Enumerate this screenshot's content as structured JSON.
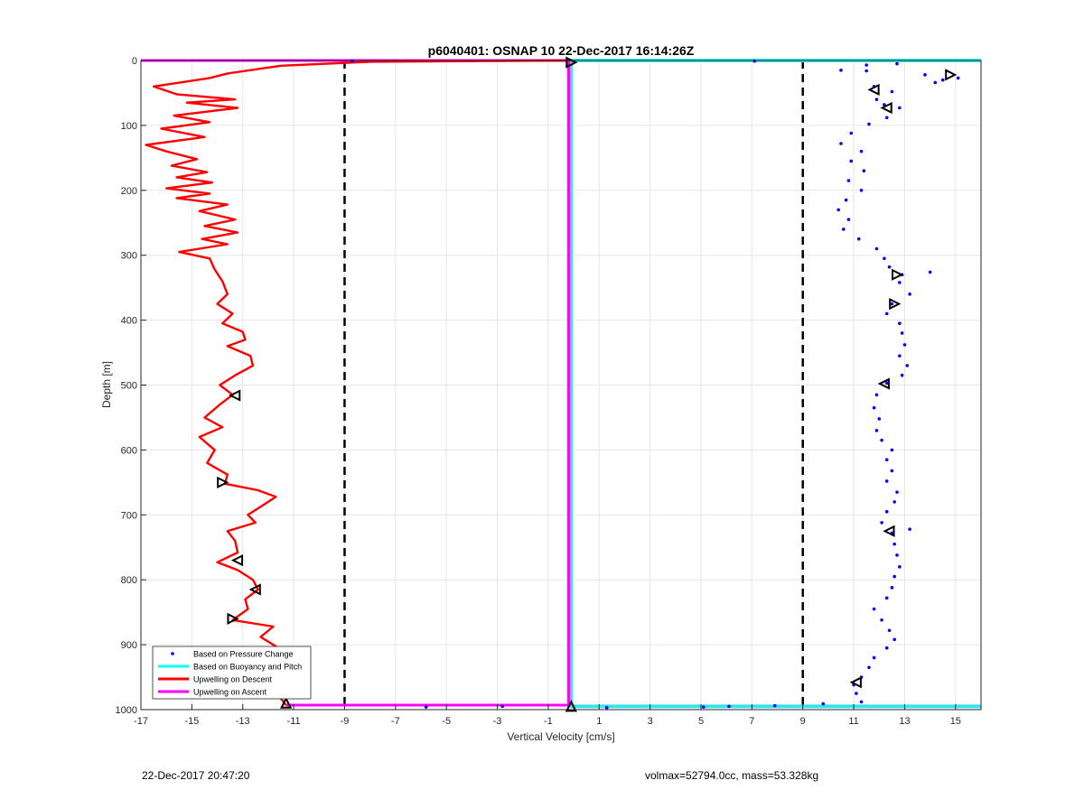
{
  "chart_data": {
    "type": "scatter",
    "title": "p6040401: OSNAP 10 22-Dec-2017 16:14:26Z",
    "xlabel": "Vertical Velocity [cm/s]",
    "ylabel": "Depth [m]",
    "xlim": [
      -17,
      16
    ],
    "ylim": [
      0,
      1000
    ],
    "y_reversed": true,
    "grid": true,
    "x_ticks": [
      -17,
      -15,
      -13,
      -11,
      -9,
      -7,
      -5,
      -3,
      -1,
      1,
      3,
      5,
      7,
      9,
      11,
      13,
      15
    ],
    "y_ticks": [
      0,
      100,
      200,
      300,
      400,
      500,
      600,
      700,
      800,
      900,
      1000
    ],
    "reference_lines": [
      {
        "name": "threshold-left",
        "x": -9,
        "style": "dashed",
        "color": "#000000"
      },
      {
        "name": "threshold-right",
        "x": 9,
        "style": "dashed",
        "color": "#000000"
      }
    ],
    "legend": {
      "location": "bottom-left",
      "entries": [
        {
          "label": "Based on Pressure Change",
          "color": "#0000ff",
          "marker": "dot"
        },
        {
          "label": "Based on Buoyancy and Pitch",
          "color": "#00ffff",
          "marker": "line"
        },
        {
          "label": "Upwelling on Descent",
          "color": "#ff0000",
          "marker": "line"
        },
        {
          "label": "Upwelling on Ascent",
          "color": "#ff00ff",
          "marker": "line"
        }
      ]
    },
    "series": [
      {
        "name": "Based on Buoyancy and Pitch",
        "type": "line",
        "color": "#33e5ea",
        "points": [
          [
            16,
            0
          ],
          [
            -0.1,
            0
          ],
          [
            -0.1,
            995
          ],
          [
            16,
            995
          ]
        ]
      },
      {
        "name": "Upwelling on Ascent",
        "type": "line",
        "color": "#ff00ff",
        "points": [
          [
            -17,
            0
          ],
          [
            -0.2,
            0
          ],
          [
            -0.2,
            993
          ],
          [
            -11.3,
            993
          ]
        ]
      },
      {
        "name": "Upwelling on Descent",
        "type": "line",
        "color": "#ff0000",
        "points": [
          [
            -0.1,
            0
          ],
          [
            -8,
            2
          ],
          [
            -11.5,
            8
          ],
          [
            -13.6,
            20
          ],
          [
            -14.3,
            27
          ],
          [
            -16.5,
            40
          ],
          [
            -15.6,
            52
          ],
          [
            -13.3,
            60
          ],
          [
            -15.2,
            65
          ],
          [
            -13.2,
            73
          ],
          [
            -15.7,
            85
          ],
          [
            -14.3,
            95
          ],
          [
            -16.2,
            105
          ],
          [
            -14.5,
            118
          ],
          [
            -16.8,
            130
          ],
          [
            -16,
            140
          ],
          [
            -14.8,
            152
          ],
          [
            -15.8,
            162
          ],
          [
            -14.4,
            172
          ],
          [
            -15.6,
            180
          ],
          [
            -14.2,
            188
          ],
          [
            -16,
            197
          ],
          [
            -14.3,
            205
          ],
          [
            -15.6,
            212
          ],
          [
            -13.6,
            222
          ],
          [
            -14.7,
            232
          ],
          [
            -13.3,
            245
          ],
          [
            -14.5,
            255
          ],
          [
            -13.2,
            265
          ],
          [
            -14.6,
            275
          ],
          [
            -13.6,
            283
          ],
          [
            -15.5,
            295
          ],
          [
            -14.3,
            305
          ],
          [
            -14.1,
            322
          ],
          [
            -13.8,
            340
          ],
          [
            -13.6,
            360
          ],
          [
            -14,
            375
          ],
          [
            -13.4,
            390
          ],
          [
            -13.8,
            405
          ],
          [
            -13,
            418
          ],
          [
            -12.9,
            430
          ],
          [
            -13.6,
            440
          ],
          [
            -12.7,
            455
          ],
          [
            -12.6,
            470
          ],
          [
            -13.3,
            485
          ],
          [
            -13.9,
            500
          ],
          [
            -13.4,
            515
          ],
          [
            -13.9,
            530
          ],
          [
            -14.5,
            550
          ],
          [
            -13.8,
            565
          ],
          [
            -14.7,
            580
          ],
          [
            -14.1,
            600
          ],
          [
            -14.4,
            620
          ],
          [
            -13.6,
            638
          ],
          [
            -13.7,
            652
          ],
          [
            -12.4,
            662
          ],
          [
            -11.7,
            672
          ],
          [
            -12.2,
            685
          ],
          [
            -12.8,
            700
          ],
          [
            -12.5,
            712
          ],
          [
            -13.6,
            725
          ],
          [
            -13.3,
            740
          ],
          [
            -13.2,
            758
          ],
          [
            -14,
            773
          ],
          [
            -13.2,
            785
          ],
          [
            -12.6,
            800
          ],
          [
            -12.4,
            815
          ],
          [
            -12.9,
            830
          ],
          [
            -12.8,
            845
          ],
          [
            -13.4,
            862
          ],
          [
            -11.8,
            872
          ],
          [
            -12.3,
            888
          ],
          [
            -11.6,
            905
          ],
          [
            -11.9,
            920
          ],
          [
            -12.2,
            940
          ],
          [
            -11.7,
            960
          ],
          [
            -11.6,
            978
          ],
          [
            -11.3,
            993
          ]
        ]
      },
      {
        "name": "Based on Pressure Change",
        "type": "scatter",
        "color": "#0000ff",
        "points": [
          [
            7.1,
            1
          ],
          [
            -8.7,
            1
          ],
          [
            11.5,
            7
          ],
          [
            12.7,
            5
          ],
          [
            10.5,
            15
          ],
          [
            11.5,
            16
          ],
          [
            13.8,
            22
          ],
          [
            14.5,
            30
          ],
          [
            15.1,
            27
          ],
          [
            14.2,
            34
          ],
          [
            11.8,
            40
          ],
          [
            12.5,
            48
          ],
          [
            11.9,
            60
          ],
          [
            12.2,
            68
          ],
          [
            12.8,
            73
          ],
          [
            12.3,
            88
          ],
          [
            11.6,
            98
          ],
          [
            10.9,
            112
          ],
          [
            10.5,
            128
          ],
          [
            11.3,
            140
          ],
          [
            10.9,
            155
          ],
          [
            11.4,
            170
          ],
          [
            10.8,
            185
          ],
          [
            11.3,
            200
          ],
          [
            10.7,
            215
          ],
          [
            10.4,
            230
          ],
          [
            10.8,
            245
          ],
          [
            10.6,
            260
          ],
          [
            11.2,
            275
          ],
          [
            11.9,
            290
          ],
          [
            12.2,
            305
          ],
          [
            12.4,
            318
          ],
          [
            12.9,
            330
          ],
          [
            14,
            326
          ],
          [
            12.8,
            342
          ],
          [
            13.2,
            360
          ],
          [
            12.5,
            375
          ],
          [
            12.3,
            390
          ],
          [
            12.8,
            405
          ],
          [
            12.9,
            420
          ],
          [
            13,
            438
          ],
          [
            12.8,
            455
          ],
          [
            13.1,
            470
          ],
          [
            12.9,
            485
          ],
          [
            12.3,
            497
          ],
          [
            11.9,
            515
          ],
          [
            11.8,
            535
          ],
          [
            12,
            552
          ],
          [
            11.9,
            570
          ],
          [
            12.1,
            585
          ],
          [
            12.5,
            600
          ],
          [
            12.3,
            615
          ],
          [
            12.5,
            632
          ],
          [
            12.3,
            648
          ],
          [
            12.7,
            665
          ],
          [
            12.6,
            680
          ],
          [
            12.3,
            695
          ],
          [
            12.1,
            712
          ],
          [
            12.5,
            728
          ],
          [
            13.2,
            722
          ],
          [
            12.6,
            745
          ],
          [
            12.7,
            762
          ],
          [
            12.8,
            780
          ],
          [
            12.6,
            795
          ],
          [
            12.5,
            812
          ],
          [
            12.3,
            828
          ],
          [
            11.8,
            845
          ],
          [
            12.1,
            862
          ],
          [
            12.4,
            878
          ],
          [
            12.6,
            892
          ],
          [
            12.3,
            905
          ],
          [
            11.8,
            920
          ],
          [
            11.6,
            935
          ],
          [
            11.3,
            950
          ],
          [
            11,
            962
          ],
          [
            11.1,
            975
          ],
          [
            11.3,
            988
          ],
          [
            -5.8,
            996
          ],
          [
            -2.8,
            995
          ],
          [
            5.1,
            996
          ],
          [
            6.1,
            995
          ],
          [
            7.9,
            994
          ],
          [
            9.8,
            991
          ],
          [
            1.3,
            997
          ]
        ]
      }
    ],
    "triangle_markers": [
      {
        "x": -0.1,
        "y": 3,
        "dir": "right"
      },
      {
        "x": 14.8,
        "y": 22,
        "dir": "right"
      },
      {
        "x": 11.8,
        "y": 45,
        "dir": "left"
      },
      {
        "x": 12.3,
        "y": 73,
        "dir": "left"
      },
      {
        "x": 12.7,
        "y": 330,
        "dir": "right"
      },
      {
        "x": 12.6,
        "y": 375,
        "dir": "right"
      },
      {
        "x": 12.2,
        "y": 498,
        "dir": "left"
      },
      {
        "x": -13.3,
        "y": 516,
        "dir": "left"
      },
      {
        "x": -13.8,
        "y": 650,
        "dir": "right"
      },
      {
        "x": 12.4,
        "y": 725,
        "dir": "left"
      },
      {
        "x": -13.2,
        "y": 770,
        "dir": "left"
      },
      {
        "x": -12.5,
        "y": 815,
        "dir": "left"
      },
      {
        "x": -13.4,
        "y": 860,
        "dir": "right"
      },
      {
        "x": -11.8,
        "y": 937,
        "dir": "left"
      },
      {
        "x": 11.1,
        "y": 958,
        "dir": "left"
      },
      {
        "x": -11.3,
        "y": 990,
        "dir": "up"
      },
      {
        "x": -0.1,
        "y": 995,
        "dir": "up"
      }
    ]
  },
  "footer": {
    "left": "22-Dec-2017 20:47:20",
    "right": "volmax=52794.0cc, mass=53.328kg"
  }
}
